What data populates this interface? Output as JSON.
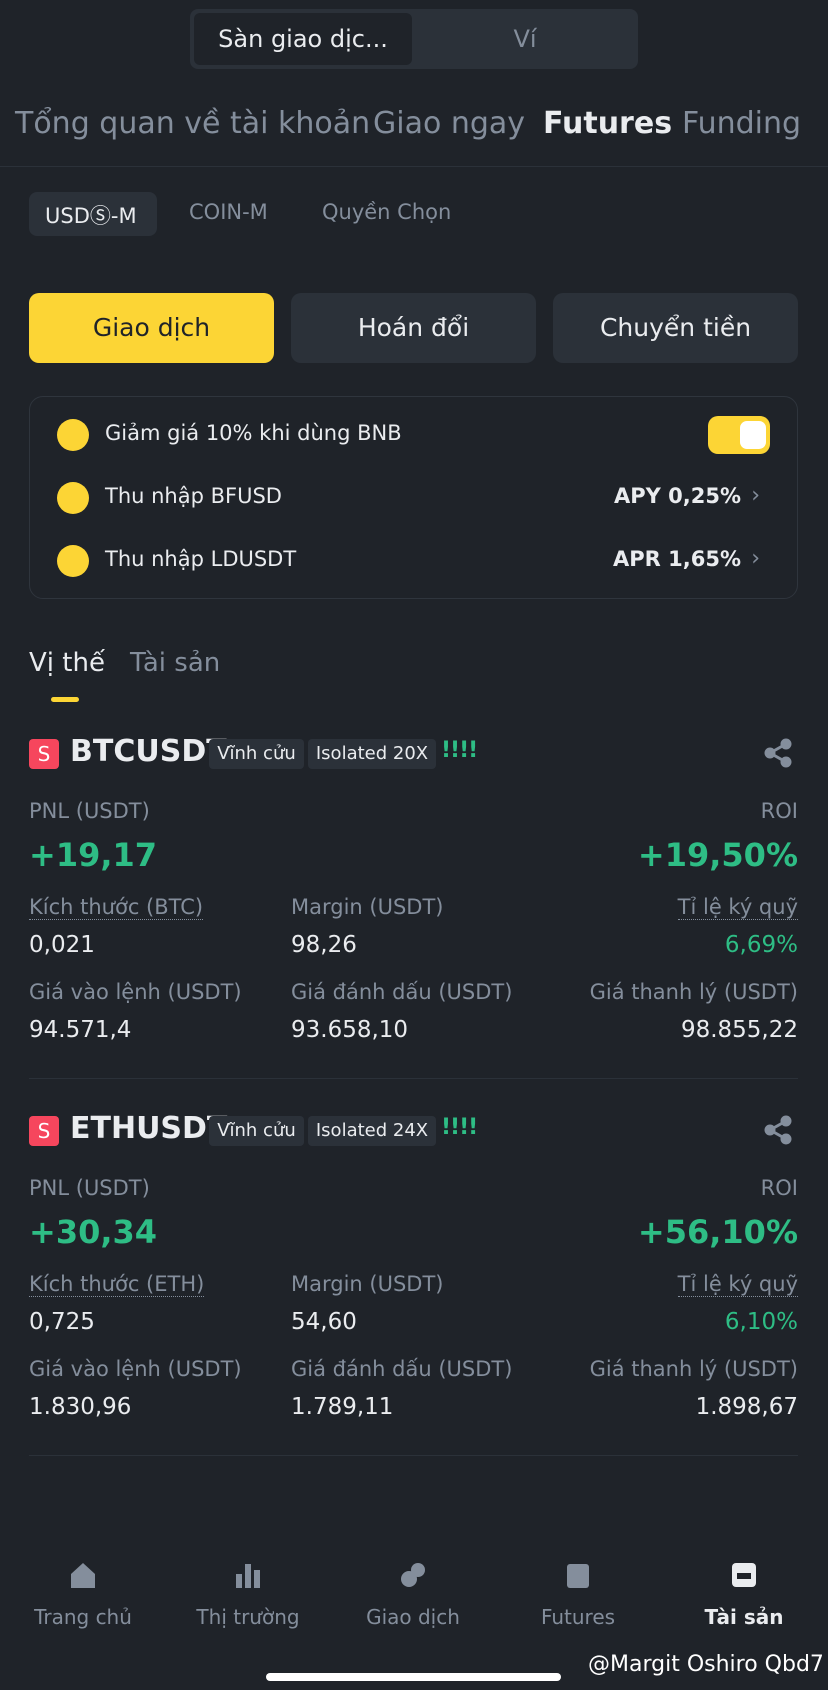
{
  "top_toggle": [
    "Sàn giao dịc...",
    "Ví"
  ],
  "tabs": [
    "Tổng quan về tài khoản",
    "Giao ngay",
    "Futures",
    "Funding"
  ],
  "subtabs": [
    "USDⓈ-M",
    "COIN-M",
    "Quyền Chọn"
  ],
  "buttons": [
    "Giao dịch",
    "Hoán đổi",
    "Chuyển tiền"
  ],
  "earn": [
    {
      "label": "Giảm giá 10% khi dùng BNB"
    },
    {
      "label": "Thu nhập BFUSD",
      "rate": "APY 0,25%"
    },
    {
      "label": "Thu nhập LDUSDT",
      "rate": "APR 1,65%"
    }
  ],
  "position_tabs": [
    "Vị thế",
    "Tài sản"
  ],
  "positions": [
    {
      "side": "S",
      "symbol": "BTCUSDT",
      "tags": [
        "Vĩnh cửu",
        "Isolated 20X"
      ],
      "pnl_label": "PNL (USDT)",
      "pnl": "+19,17",
      "roi_label": "ROI",
      "roi": "+19,50%",
      "fields": [
        {
          "label": "Kích thước (BTC)",
          "value": "0,021"
        },
        {
          "label": "Margin (USDT)",
          "value": "98,26"
        },
        {
          "label": "Tỉ lệ ký quỹ",
          "value": "6,69%"
        },
        {
          "label": "Giá vào lệnh (USDT)",
          "value": "94.571,4"
        },
        {
          "label": "Giá đánh dấu (USDT)",
          "value": "93.658,10"
        },
        {
          "label": "Giá thanh lý (USDT)",
          "value": "98.855,22"
        }
      ]
    },
    {
      "side": "S",
      "symbol": "ETHUSDT",
      "tags": [
        "Vĩnh cửu",
        "Isolated 24X"
      ],
      "pnl_label": "PNL (USDT)",
      "pnl": "+30,34",
      "roi_label": "ROI",
      "roi": "+56,10%",
      "fields": [
        {
          "label": "Kích thước (ETH)",
          "value": "0,725"
        },
        {
          "label": "Margin (USDT)",
          "value": "54,60"
        },
        {
          "label": "Tỉ lệ ký quỹ",
          "value": "6,10%"
        },
        {
          "label": "Giá vào lệnh (USDT)",
          "value": "1.830,96"
        },
        {
          "label": "Giá đánh dấu (USDT)",
          "value": "1.789,11"
        },
        {
          "label": "Giá thanh lý (USDT)",
          "value": "1.898,67"
        }
      ]
    }
  ],
  "nav": [
    "Trang chủ",
    "Thị trường",
    "Giao dịch",
    "Futures",
    "Tài sản"
  ],
  "watermark": "@Margit Oshiro Qbd7"
}
